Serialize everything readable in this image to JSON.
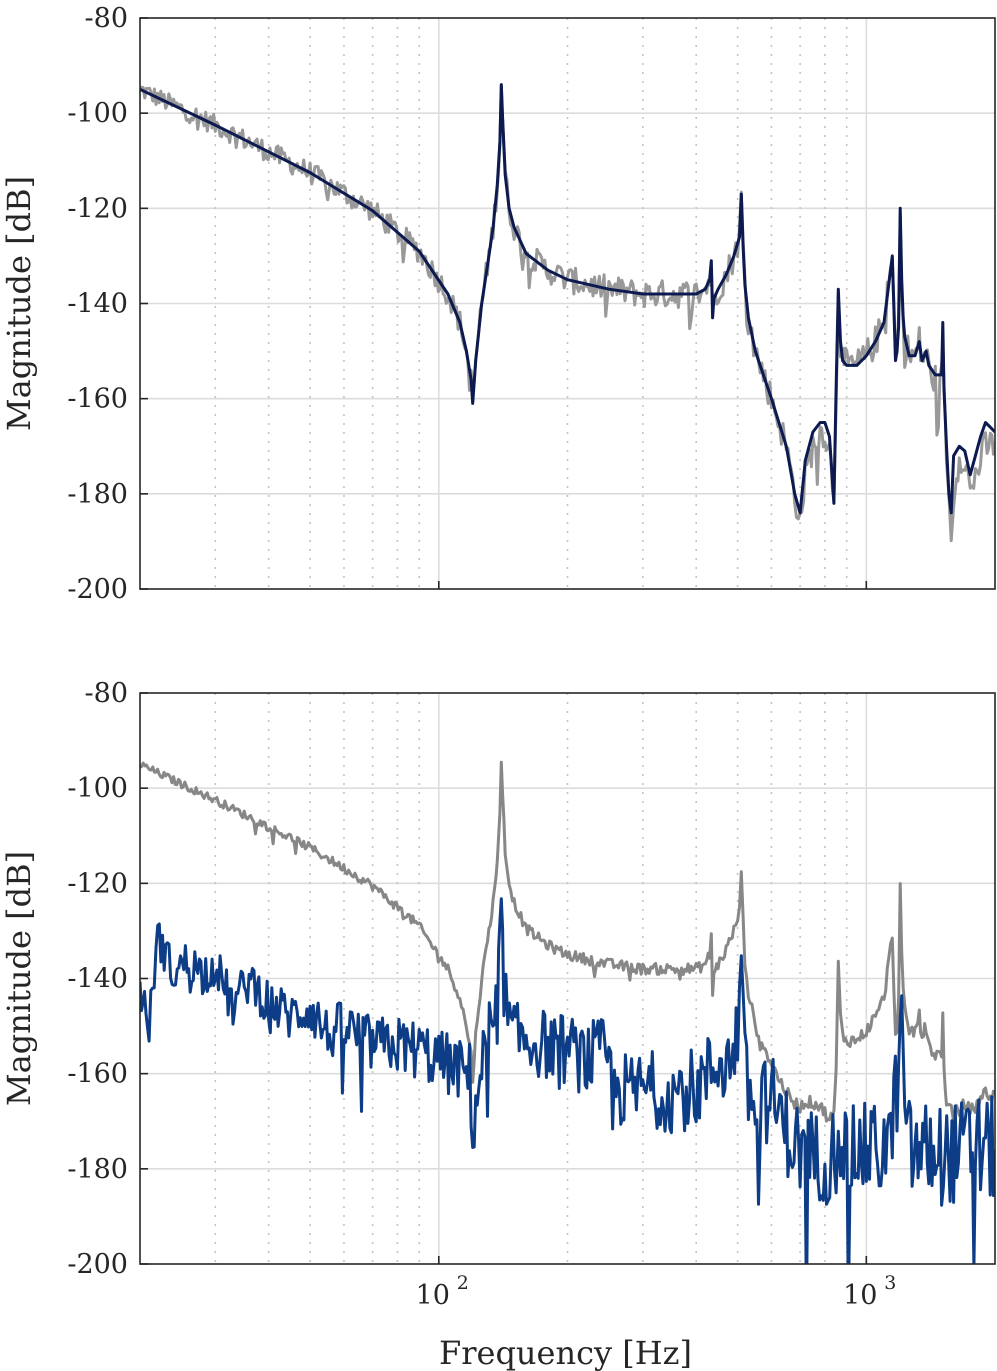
{
  "chart_data": [
    {
      "type": "line",
      "xscale": "log",
      "xlim": [
        20,
        2000
      ],
      "ylim": [
        -200,
        -80
      ],
      "xticks": [
        100,
        1000
      ],
      "xticklabels": [
        "",
        ""
      ],
      "yticks": [
        -80,
        -100,
        -120,
        -140,
        -160,
        -180,
        -200
      ],
      "yticklabels": [
        "-80",
        "-100",
        "-120",
        "-140",
        "-160",
        "-180",
        "-200"
      ],
      "xlabel": "",
      "ylabel": "Magnitude [dB]",
      "grid": true,
      "series": [
        {
          "color": "#999999",
          "noise": 2,
          "x": [
            20,
            30,
            50,
            70,
            90,
            105,
            112,
            116,
            119,
            120,
            122,
            126,
            130,
            134,
            137,
            139,
            140,
            141,
            143,
            146,
            150,
            160,
            180,
            200,
            250,
            300,
            400,
            420,
            430,
            434,
            437,
            440,
            450,
            470,
            490,
            505,
            510,
            515,
            520,
            530,
            550,
            600,
            650,
            680,
            700,
            720,
            750,
            780,
            800,
            820,
            840,
            850,
            860,
            870,
            880,
            900,
            950,
            1000,
            1050,
            1100,
            1150,
            1170,
            1180,
            1190,
            1200,
            1210,
            1220,
            1230,
            1260,
            1300,
            1330,
            1350,
            1380,
            1400,
            1450,
            1500,
            1510,
            1520,
            1540,
            1560,
            1580,
            1600,
            1650,
            1700,
            1750,
            1800,
            1850,
            1900,
            1950,
            2000
          ],
          "y": [
            -95,
            -102.5,
            -112.5,
            -120.5,
            -129,
            -138,
            -144,
            -150,
            -156,
            -161,
            -152,
            -140,
            -132,
            -124,
            -115,
            -106,
            -94,
            -101,
            -113,
            -120,
            -124,
            -129.5,
            -133,
            -135,
            -137,
            -138,
            -138,
            -137,
            -135,
            -131,
            -143,
            -139,
            -137,
            -134,
            -130,
            -126,
            -117,
            -128,
            -136,
            -143,
            -150,
            -160,
            -170,
            -180,
            -186,
            -176,
            -170,
            -167,
            -167,
            -171,
            -180,
            -158,
            -138,
            -148,
            -152,
            -153,
            -153,
            -151,
            -148,
            -144,
            -131,
            -152,
            -150,
            -145,
            -121,
            -135,
            -143,
            -147,
            -151,
            -151,
            -148,
            -152,
            -150,
            -154,
            -156,
            -156,
            -146,
            -160,
            -171,
            -180,
            -191,
            -180,
            -172,
            -172,
            -180,
            -176,
            -173,
            -170,
            -170,
            -169
          ]
        },
        {
          "color": "#0c1a50",
          "x": [
            20,
            30,
            50,
            70,
            90,
            105,
            112,
            116,
            119,
            120,
            122,
            126,
            130,
            134,
            137,
            139,
            140,
            141,
            143,
            146,
            150,
            160,
            180,
            200,
            250,
            300,
            400,
            420,
            430,
            434,
            437,
            440,
            450,
            470,
            490,
            505,
            510,
            515,
            520,
            530,
            550,
            600,
            650,
            680,
            700,
            720,
            750,
            780,
            800,
            820,
            840,
            850,
            860,
            870,
            880,
            900,
            950,
            1000,
            1050,
            1100,
            1150,
            1170,
            1180,
            1190,
            1200,
            1210,
            1220,
            1230,
            1260,
            1300,
            1330,
            1350,
            1380,
            1400,
            1450,
            1500,
            1510,
            1520,
            1540,
            1560,
            1580,
            1600,
            1650,
            1700,
            1750,
            1800,
            1850,
            1900,
            1950,
            2000
          ],
          "y": [
            -95,
            -102.5,
            -112.5,
            -120.5,
            -129,
            -138,
            -144,
            -150,
            -156,
            -161,
            -152,
            -140,
            -132,
            -124,
            -115,
            -106,
            -94,
            -101,
            -113,
            -120,
            -124,
            -129.5,
            -133,
            -135,
            -137,
            -138,
            -138,
            -137,
            -135,
            -131,
            -143,
            -139,
            -137,
            -134,
            -130,
            -126,
            -117,
            -128,
            -136,
            -143,
            -150,
            -160,
            -170,
            -180,
            -184,
            -173,
            -167,
            -165,
            -165,
            -168,
            -182,
            -158,
            -137,
            -148,
            -152,
            -153,
            -153,
            -151,
            -148,
            -144,
            -130,
            -152,
            -150,
            -145,
            -120,
            -135,
            -143,
            -147,
            -151,
            -151,
            -148,
            -152,
            -150,
            -153,
            -155,
            -155,
            -144,
            -158,
            -170,
            -180,
            -184,
            -172,
            -170,
            -171,
            -176,
            -172,
            -168,
            -165,
            -166,
            -167
          ]
        }
      ]
    },
    {
      "type": "line",
      "xscale": "log",
      "xlim": [
        20,
        2000
      ],
      "ylim": [
        -200,
        -80
      ],
      "xticks": [
        100,
        1000
      ],
      "xticklabels": [
        "10",
        "10"
      ],
      "xtickexp": "2",
      "xtickexp2": "3",
      "yticks": [
        -80,
        -100,
        -120,
        -140,
        -160,
        -180,
        -200
      ],
      "yticklabels": [
        "-80",
        "-100",
        "-120",
        "-140",
        "-160",
        "-180",
        "-200"
      ],
      "xlabel": "Frequency [Hz]",
      "ylabel": "Magnitude [dB]",
      "grid": true,
      "series": [
        {
          "color": "#878787",
          "noise": 0.8,
          "x": [
            20,
            30,
            50,
            70,
            90,
            105,
            112,
            116,
            119,
            120,
            122,
            126,
            130,
            134,
            137,
            139,
            140,
            141,
            143,
            146,
            150,
            160,
            180,
            200,
            250,
            300,
            400,
            420,
            430,
            434,
            437,
            440,
            450,
            470,
            490,
            505,
            510,
            515,
            520,
            530,
            550,
            600,
            650,
            680,
            700,
            720,
            750,
            780,
            800,
            820,
            840,
            850,
            860,
            870,
            880,
            900,
            950,
            1000,
            1050,
            1100,
            1150,
            1170,
            1180,
            1190,
            1200,
            1210,
            1220,
            1230,
            1260,
            1300,
            1330,
            1350,
            1380,
            1400,
            1450,
            1500,
            1510,
            1520,
            1540,
            1560,
            1580,
            1600,
            1650,
            1700,
            1750,
            1800,
            1850,
            1900,
            1950,
            2000
          ],
          "y": [
            -95,
            -102.5,
            -112.5,
            -120.5,
            -129,
            -138,
            -144,
            -150,
            -156,
            -161,
            -152,
            -140,
            -132,
            -124,
            -115,
            -106,
            -94,
            -101,
            -113,
            -120,
            -124,
            -129.5,
            -133,
            -135,
            -137,
            -138,
            -138,
            -137,
            -135,
            -131,
            -143,
            -139,
            -137,
            -134,
            -130,
            -126,
            -117,
            -128,
            -136,
            -143,
            -150,
            -158,
            -164,
            -166,
            -167,
            -166,
            -166,
            -167,
            -168,
            -170,
            -168,
            -160,
            -137,
            -148,
            -152,
            -153,
            -153,
            -151,
            -148,
            -144,
            -131,
            -152,
            -150,
            -145,
            -121,
            -135,
            -143,
            -147,
            -151,
            -151,
            -148,
            -152,
            -150,
            -154,
            -156,
            -156,
            -146,
            -160,
            -167,
            -167,
            -168,
            -168,
            -168,
            -166,
            -168,
            -167,
            -165,
            -164,
            -165,
            -164
          ]
        },
        {
          "color": "#0d3d86",
          "noise": 4,
          "x": [
            20,
            21,
            22,
            24,
            26,
            28,
            30,
            33,
            36,
            40,
            45,
            50,
            55,
            60,
            70,
            80,
            90,
            100,
            110,
            118,
            120,
            125,
            130,
            135,
            138,
            140,
            142,
            145,
            150,
            160,
            180,
            200,
            220,
            240,
            250,
            255,
            260,
            280,
            300,
            350,
            400,
            430,
            450,
            480,
            500,
            505,
            510,
            515,
            520,
            530,
            550,
            600,
            650,
            700,
            750,
            800,
            850,
            860,
            870,
            900,
            1000,
            1100,
            1150,
            1200,
            1210,
            1220,
            1250,
            1300,
            1400,
            1500,
            1600,
            1700,
            1800,
            1900,
            2000
          ],
          "y": [
            -142,
            -150,
            -131,
            -139,
            -136,
            -139,
            -137,
            -146,
            -140,
            -145,
            -148,
            -146,
            -152,
            -150,
            -154,
            -154,
            -155,
            -157,
            -159,
            -160,
            -172,
            -160,
            -151,
            -150,
            -140,
            -126,
            -141,
            -149,
            -152,
            -153,
            -154,
            -155,
            -157,
            -156,
            -157,
            -166,
            -163,
            -164,
            -163,
            -164,
            -163,
            -160,
            -157,
            -158,
            -151,
            -142,
            -130,
            -146,
            -160,
            -164,
            -167,
            -165,
            -172,
            -176,
            -177,
            -178,
            -176,
            -166,
            -174,
            -177,
            -176,
            -176,
            -172,
            -156,
            -140,
            -163,
            -175,
            -177,
            -176,
            -177,
            -177,
            -176,
            -175,
            -176,
            -176
          ]
        }
      ]
    }
  ]
}
